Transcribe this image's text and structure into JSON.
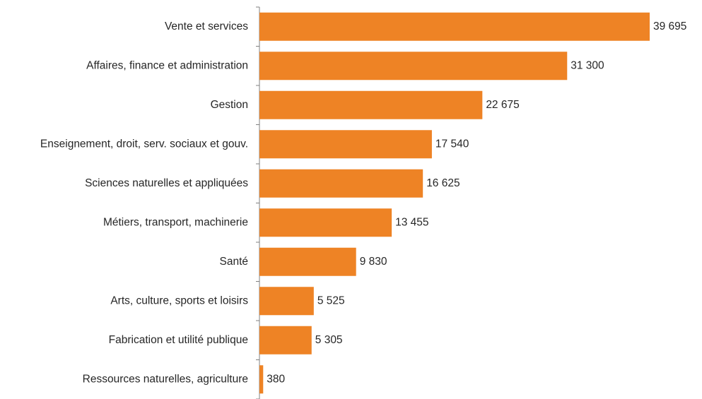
{
  "chart_data": {
    "type": "bar",
    "orientation": "horizontal",
    "color": "#ee8325",
    "categories": [
      "Vente et services",
      "Affaires, finance et administration",
      "Gestion",
      "Enseignement, droit, serv. sociaux et gouv.",
      "Sciences naturelles et appliquées",
      "Métiers, transport, machinerie",
      "Santé",
      "Arts, culture, sports et loisirs",
      "Fabrication et utilité publique",
      "Ressources naturelles, agriculture"
    ],
    "values": [
      39695,
      31300,
      22675,
      17540,
      16625,
      13455,
      9830,
      5525,
      5305,
      380
    ],
    "value_labels": [
      "39 695",
      "31 300",
      "22 675",
      "17 540",
      "16 625",
      "13 455",
      "9 830",
      "5 525",
      "5 305",
      "380"
    ]
  }
}
